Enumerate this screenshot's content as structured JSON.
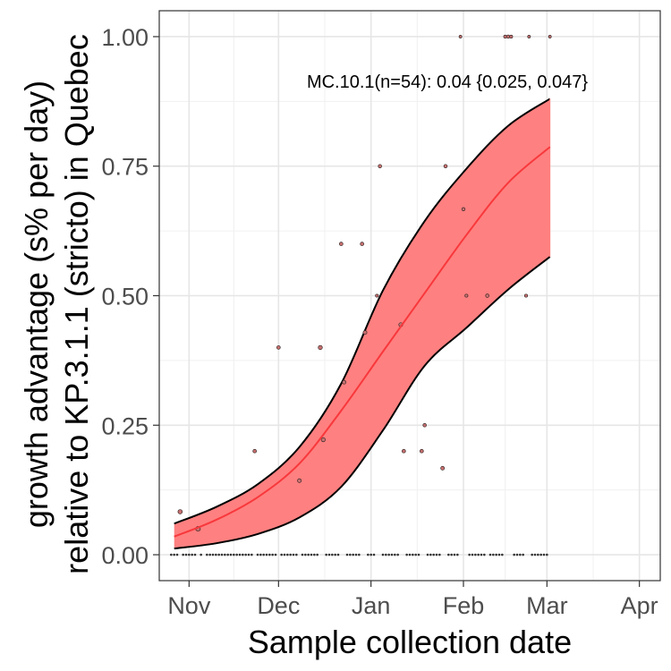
{
  "chart_data": {
    "type": "line",
    "xlabel": "Sample collection date",
    "ylabel_line1": "growth advantage (s% per day)",
    "ylabel_line2": "relative to KP.3.1.1 (stricto) in Quebec",
    "x_range": [
      "2024-10-22",
      "2025-04-08"
    ],
    "ylim": [
      -0.05,
      1.05
    ],
    "x_ticks": [
      {
        "date": "2024-11-01",
        "label": "Nov"
      },
      {
        "date": "2024-12-01",
        "label": "Dec"
      },
      {
        "date": "2025-01-01",
        "label": "Jan"
      },
      {
        "date": "2025-02-01",
        "label": "Feb"
      },
      {
        "date": "2025-03-01",
        "label": "Mar"
      },
      {
        "date": "2025-04-01",
        "label": "Apr"
      }
    ],
    "y_ticks": [
      {
        "value": 0.0,
        "label": "0.00"
      },
      {
        "value": 0.25,
        "label": "0.25"
      },
      {
        "value": 0.5,
        "label": "0.50"
      },
      {
        "value": 0.75,
        "label": "0.75"
      },
      {
        "value": 1.0,
        "label": "1.00"
      }
    ],
    "grid": true,
    "annotation": "MC.10.1(n=54): 0.04 {0.025, 0.047}",
    "colors": {
      "fit": "#f8383c",
      "band": "#ff8080",
      "band_edge": "#000000",
      "points": "#c87070"
    },
    "fit": {
      "x": [
        "2024-10-27",
        "2024-11-10",
        "2024-11-24",
        "2024-12-08",
        "2024-12-22",
        "2025-01-05",
        "2025-01-19",
        "2025-02-02",
        "2025-02-16",
        "2025-03-02"
      ],
      "y": [
        0.035,
        0.067,
        0.111,
        0.176,
        0.278,
        0.392,
        0.505,
        0.617,
        0.718,
        0.787
      ],
      "lower": [
        0.012,
        0.022,
        0.04,
        0.072,
        0.131,
        0.24,
        0.365,
        0.438,
        0.512,
        0.575
      ],
      "upper": [
        0.06,
        0.092,
        0.136,
        0.208,
        0.33,
        0.51,
        0.644,
        0.745,
        0.828,
        0.88
      ]
    },
    "points": [
      {
        "x": "2024-10-29",
        "y": 0.083,
        "n": 12
      },
      {
        "x": "2024-11-04",
        "y": 0.05,
        "n": 20
      },
      {
        "x": "2024-11-23",
        "y": 0.2,
        "n": 5
      },
      {
        "x": "2024-12-01",
        "y": 0.4,
        "n": 5
      },
      {
        "x": "2024-12-08",
        "y": 0.143,
        "n": 7
      },
      {
        "x": "2024-12-15",
        "y": 0.4,
        "n": 10
      },
      {
        "x": "2024-12-16",
        "y": 0.222,
        "n": 9
      },
      {
        "x": "2024-12-22",
        "y": 0.6,
        "n": 5
      },
      {
        "x": "2024-12-23",
        "y": 0.333,
        "n": 6
      },
      {
        "x": "2024-12-29",
        "y": 0.6,
        "n": 5
      },
      {
        "x": "2024-12-30",
        "y": 0.429,
        "n": 7
      },
      {
        "x": "2025-01-03",
        "y": 0.5,
        "n": 2
      },
      {
        "x": "2025-01-04",
        "y": 0.75,
        "n": 4
      },
      {
        "x": "2025-01-11",
        "y": 0.444,
        "n": 9
      },
      {
        "x": "2025-01-12",
        "y": 0.2,
        "n": 5
      },
      {
        "x": "2025-01-18",
        "y": 0.2,
        "n": 5
      },
      {
        "x": "2025-01-19",
        "y": 0.25,
        "n": 4
      },
      {
        "x": "2025-01-25",
        "y": 0.167,
        "n": 6
      },
      {
        "x": "2025-01-26",
        "y": 0.75,
        "n": 4
      },
      {
        "x": "2025-01-31",
        "y": 1.0,
        "n": 1
      },
      {
        "x": "2025-02-01",
        "y": 0.667,
        "n": 3
      },
      {
        "x": "2025-02-02",
        "y": 0.5,
        "n": 2
      },
      {
        "x": "2025-02-09",
        "y": 0.5,
        "n": 4
      },
      {
        "x": "2025-02-15",
        "y": 1.0,
        "n": 2
      },
      {
        "x": "2025-02-16",
        "y": 1.0,
        "n": 3
      },
      {
        "x": "2025-02-17",
        "y": 1.0,
        "n": 2
      },
      {
        "x": "2025-02-22",
        "y": 0.5,
        "n": 2
      },
      {
        "x": "2025-02-23",
        "y": 1.0,
        "n": 1
      },
      {
        "x": "2025-03-02",
        "y": 1.0,
        "n": 1
      }
    ],
    "zero_points": [
      "2024-10-26",
      "2024-10-27",
      "2024-10-28",
      "2024-10-30",
      "2024-10-31",
      "2024-11-01",
      "2024-11-02",
      "2024-11-03",
      "2024-11-05",
      "2024-11-07",
      "2024-11-08",
      "2024-11-09",
      "2024-11-10",
      "2024-11-11",
      "2024-11-12",
      "2024-11-13",
      "2024-11-14",
      "2024-11-15",
      "2024-11-16",
      "2024-11-17",
      "2024-11-18",
      "2024-11-19",
      "2024-11-20",
      "2024-11-21",
      "2024-11-22",
      "2024-11-24",
      "2024-11-25",
      "2024-11-26",
      "2024-11-27",
      "2024-11-28",
      "2024-11-29",
      "2024-11-30",
      "2024-12-02",
      "2024-12-03",
      "2024-12-04",
      "2024-12-05",
      "2024-12-06",
      "2024-12-07",
      "2024-12-09",
      "2024-12-10",
      "2024-12-11",
      "2024-12-12",
      "2024-12-13",
      "2024-12-14",
      "2024-12-17",
      "2024-12-18",
      "2024-12-19",
      "2024-12-20",
      "2024-12-21",
      "2024-12-24",
      "2024-12-25",
      "2024-12-26",
      "2024-12-27",
      "2024-12-28",
      "2024-12-31",
      "2025-01-01",
      "2025-01-02",
      "2025-01-05",
      "2025-01-06",
      "2025-01-07",
      "2025-01-08",
      "2025-01-09",
      "2025-01-10",
      "2025-01-13",
      "2025-01-14",
      "2025-01-15",
      "2025-01-16",
      "2025-01-17",
      "2025-01-20",
      "2025-01-21",
      "2025-01-22",
      "2025-01-23",
      "2025-01-24",
      "2025-01-27",
      "2025-01-28",
      "2025-01-29",
      "2025-01-30",
      "2025-02-03",
      "2025-02-04",
      "2025-02-05",
      "2025-02-06",
      "2025-02-07",
      "2025-02-08",
      "2025-02-10",
      "2025-02-11",
      "2025-02-12",
      "2025-02-13",
      "2025-02-14",
      "2025-02-18",
      "2025-02-19",
      "2025-02-20",
      "2025-02-21",
      "2025-02-24",
      "2025-02-25",
      "2025-02-26",
      "2025-02-27",
      "2025-02-28",
      "2025-03-01"
    ]
  }
}
